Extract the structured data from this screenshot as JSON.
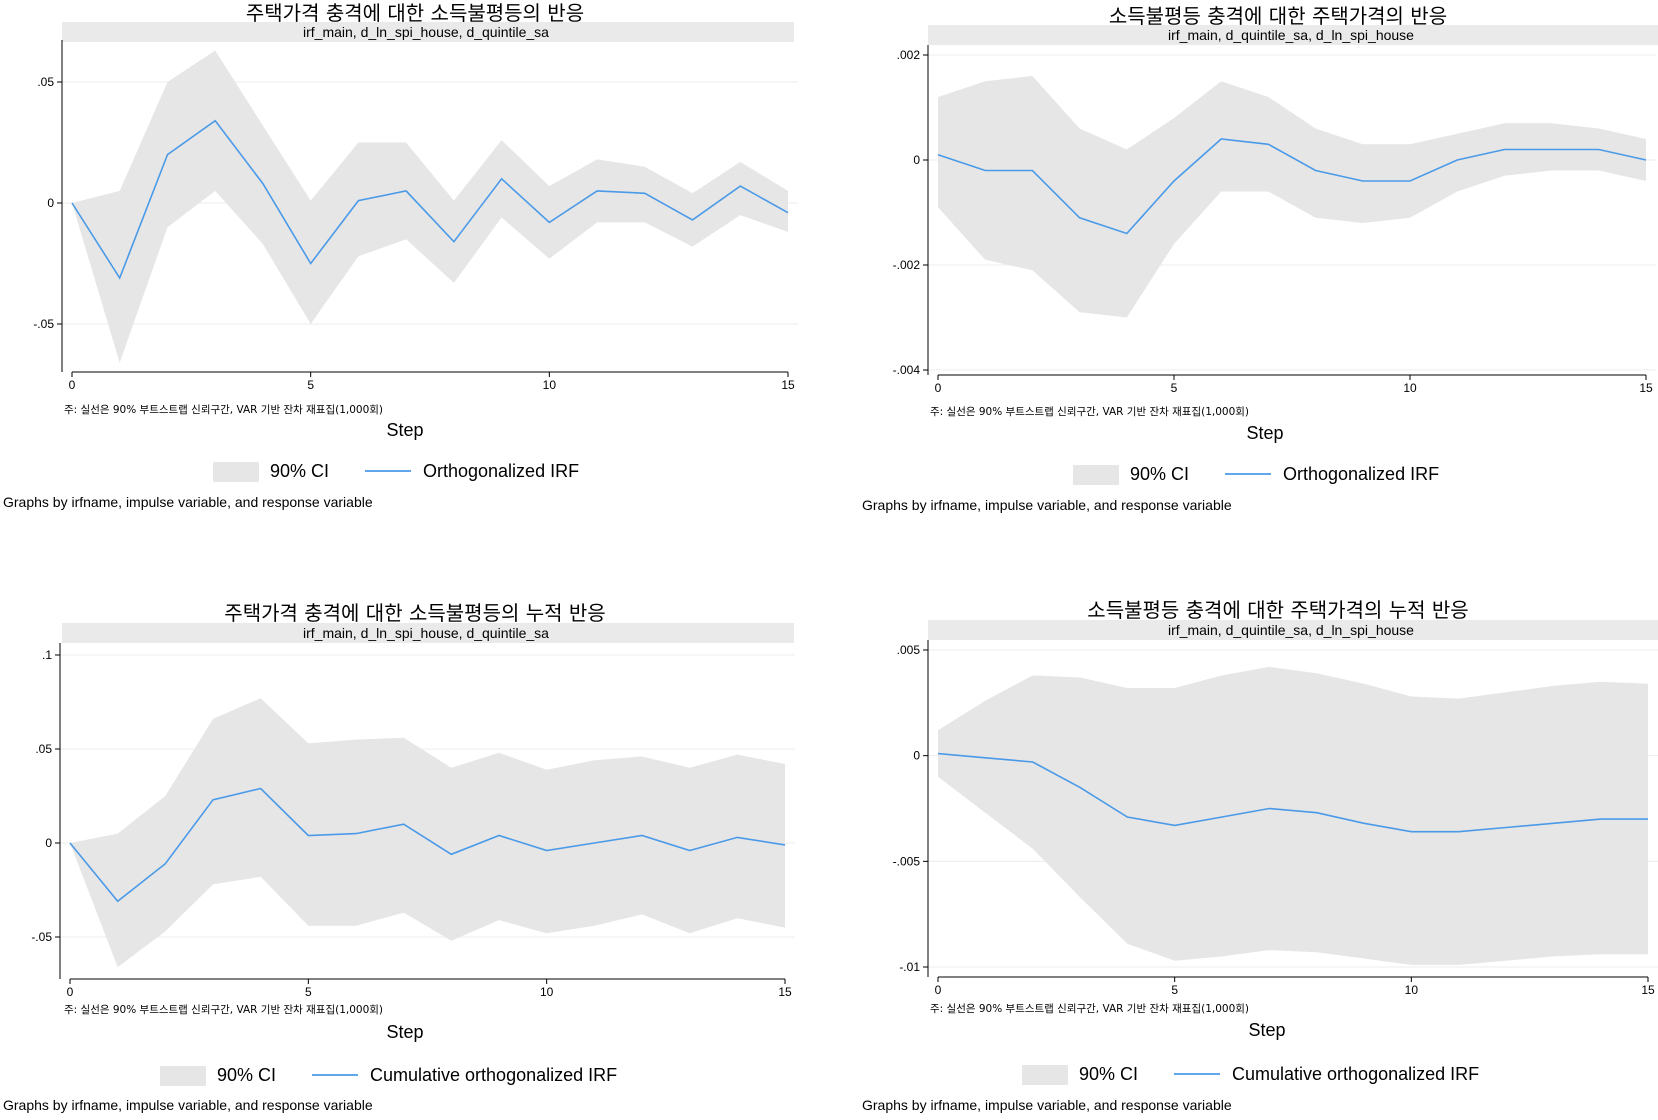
{
  "footer": "Graphs by irfname, impulse variable, and response variable",
  "colors": {
    "band": "#e6e6e6",
    "line": "#4a9ae8",
    "strip": "#eaeaea",
    "grid": "#ececec",
    "axis": "#000000"
  },
  "chart_data": [
    {
      "type": "area",
      "title": "주택가격 충격에 대한 소득불평등의 반응",
      "subtitle": "irf_main, d_ln_spi_house, d_quintile_sa",
      "xlabel": "Step",
      "note": "주: 실선은 90% 부트스트랩 신뢰구간, VAR 기반 잔차 재표집(1,000회)",
      "xlim": [
        0,
        15
      ],
      "ylim": [
        -0.07,
        0.065
      ],
      "xticks": [
        0,
        5,
        10,
        15
      ],
      "xtick_labels": [
        "0",
        "5",
        "10",
        "15"
      ],
      "yticks": [
        -0.05,
        0,
        0.05
      ],
      "ytick_labels": [
        "-.05",
        "0",
        ".05"
      ],
      "grid": true,
      "legend_position": "bottom",
      "x": [
        0,
        1,
        2,
        3,
        4,
        5,
        6,
        7,
        8,
        9,
        10,
        11,
        12,
        13,
        14,
        15
      ],
      "series": [
        {
          "name": "90% CI",
          "lower": [
            0,
            -0.066,
            -0.01,
            0.005,
            -0.017,
            -0.05,
            -0.022,
            -0.015,
            -0.033,
            -0.006,
            -0.023,
            -0.008,
            -0.008,
            -0.018,
            -0.005,
            -0.012
          ],
          "upper": [
            0,
            0.005,
            0.05,
            0.063,
            0.032,
            0.001,
            0.025,
            0.025,
            0.001,
            0.026,
            0.007,
            0.018,
            0.015,
            0.004,
            0.017,
            0.005
          ]
        },
        {
          "name": "Orthogonalized IRF",
          "values": [
            0,
            -0.031,
            0.02,
            0.034,
            0.008,
            -0.025,
            0.001,
            0.005,
            -0.016,
            0.01,
            -0.008,
            0.005,
            0.004,
            -0.007,
            0.007,
            -0.004
          ]
        }
      ]
    },
    {
      "type": "area",
      "title": "소득불평등 충격에 대한 주택가격의 반응",
      "subtitle": "irf_main, d_quintile_sa, d_ln_spi_house",
      "xlabel": "Step",
      "note": "주: 실선은 90% 부트스트랩 신뢰구간, VAR 기반 잔차 재표집(1,000회)",
      "xlim": [
        0,
        15
      ],
      "ylim": [
        -0.0041,
        0.0022
      ],
      "xticks": [
        0,
        5,
        10,
        15
      ],
      "xtick_labels": [
        "0",
        "5",
        "10",
        "15"
      ],
      "yticks": [
        -0.004,
        -0.002,
        0,
        0.002
      ],
      "ytick_labels": [
        "-.004",
        "-.002",
        "0",
        ".002"
      ],
      "grid": true,
      "legend_position": "bottom",
      "x": [
        0,
        1,
        2,
        3,
        4,
        5,
        6,
        7,
        8,
        9,
        10,
        11,
        12,
        13,
        14,
        15
      ],
      "series": [
        {
          "name": "90% CI",
          "lower": [
            -0.0009,
            -0.0019,
            -0.0021,
            -0.0029,
            -0.003,
            -0.0016,
            -0.0006,
            -0.0006,
            -0.0011,
            -0.0012,
            -0.0011,
            -0.0006,
            -0.0003,
            -0.0002,
            -0.0002,
            -0.0004
          ],
          "upper": [
            0.0012,
            0.0015,
            0.0016,
            0.0006,
            0.0002,
            0.0008,
            0.0015,
            0.0012,
            0.0006,
            0.0003,
            0.0003,
            0.0005,
            0.0007,
            0.0007,
            0.0006,
            0.0004
          ]
        },
        {
          "name": "Orthogonalized IRF",
          "values": [
            0.0001,
            -0.0002,
            -0.0002,
            -0.0011,
            -0.0014,
            -0.0004,
            0.0004,
            0.0003,
            -0.0002,
            -0.0004,
            -0.0004,
            0,
            0.0002,
            0.0002,
            0.0002,
            0
          ]
        }
      ]
    },
    {
      "type": "area",
      "title": "주택가격 충격에 대한 소득불평등의 누적 반응",
      "subtitle": "irf_main, d_ln_spi_house, d_quintile_sa",
      "xlabel": "Step",
      "note": "주: 실선은 90% 부트스트랩 신뢰구간, VAR 기반 잔차 재표집(1,000회)",
      "xlim": [
        0,
        15
      ],
      "ylim": [
        -0.072,
        0.103
      ],
      "xticks": [
        0,
        5,
        10,
        15
      ],
      "xtick_labels": [
        "0",
        "5",
        "10",
        "15"
      ],
      "yticks": [
        -0.05,
        0,
        0.05,
        0.1
      ],
      "ytick_labels": [
        "-.05",
        "0",
        ".05",
        ".1"
      ],
      "grid": true,
      "legend_position": "bottom",
      "x": [
        0,
        1,
        2,
        3,
        4,
        5,
        6,
        7,
        8,
        9,
        10,
        11,
        12,
        13,
        14,
        15
      ],
      "series": [
        {
          "name": "90% CI",
          "lower": [
            0,
            -0.066,
            -0.047,
            -0.022,
            -0.018,
            -0.044,
            -0.044,
            -0.037,
            -0.052,
            -0.041,
            -0.048,
            -0.044,
            -0.038,
            -0.048,
            -0.04,
            -0.045
          ],
          "upper": [
            0,
            0.005,
            0.025,
            0.066,
            0.077,
            0.053,
            0.055,
            0.056,
            0.04,
            0.048,
            0.039,
            0.044,
            0.046,
            0.04,
            0.047,
            0.042
          ]
        },
        {
          "name": "Cumulative orthogonalized IRF",
          "values": [
            0,
            -0.031,
            -0.011,
            0.023,
            0.029,
            0.004,
            0.005,
            0.01,
            -0.006,
            0.004,
            -0.004,
            0,
            0.004,
            -0.004,
            0.003,
            -0.001
          ]
        }
      ]
    },
    {
      "type": "area",
      "title": "소득불평등 충격에 대한 주택가격의 누적 반응",
      "subtitle": "irf_main, d_quintile_sa, d_ln_spi_house",
      "xlabel": "Step",
      "note": "주: 실선은 90% 부트스트랩 신뢰구간, VAR 기반 잔차 재표집(1,000회)",
      "xlim": [
        0,
        15
      ],
      "ylim": [
        -0.0102,
        0.0054
      ],
      "xticks": [
        0,
        5,
        10,
        15
      ],
      "xtick_labels": [
        "0",
        "5",
        "10",
        "15"
      ],
      "yticks": [
        -0.01,
        -0.005,
        0,
        0.005
      ],
      "ytick_labels": [
        "-.01",
        "-.005",
        "0",
        ".005"
      ],
      "grid": true,
      "legend_position": "bottom",
      "x": [
        0,
        1,
        2,
        3,
        4,
        5,
        6,
        7,
        8,
        9,
        10,
        11,
        12,
        13,
        14,
        15
      ],
      "series": [
        {
          "name": "90% CI",
          "lower": [
            -0.001,
            -0.0027,
            -0.0044,
            -0.0067,
            -0.0089,
            -0.0097,
            -0.0095,
            -0.0092,
            -0.0093,
            -0.0096,
            -0.0099,
            -0.0099,
            -0.0097,
            -0.0095,
            -0.0094,
            -0.0094
          ],
          "upper": [
            0.0012,
            0.0026,
            0.0038,
            0.0037,
            0.0032,
            0.0032,
            0.0038,
            0.0042,
            0.0039,
            0.0034,
            0.0028,
            0.0027,
            0.003,
            0.0033,
            0.0035,
            0.0034
          ]
        },
        {
          "name": "Cumulative orthogonalized IRF",
          "values": [
            0.0001,
            -0.0001,
            -0.0003,
            -0.0015,
            -0.0029,
            -0.0033,
            -0.0029,
            -0.0025,
            -0.0027,
            -0.0032,
            -0.0036,
            -0.0036,
            -0.0034,
            -0.0032,
            -0.003,
            -0.003
          ]
        }
      ]
    }
  ]
}
